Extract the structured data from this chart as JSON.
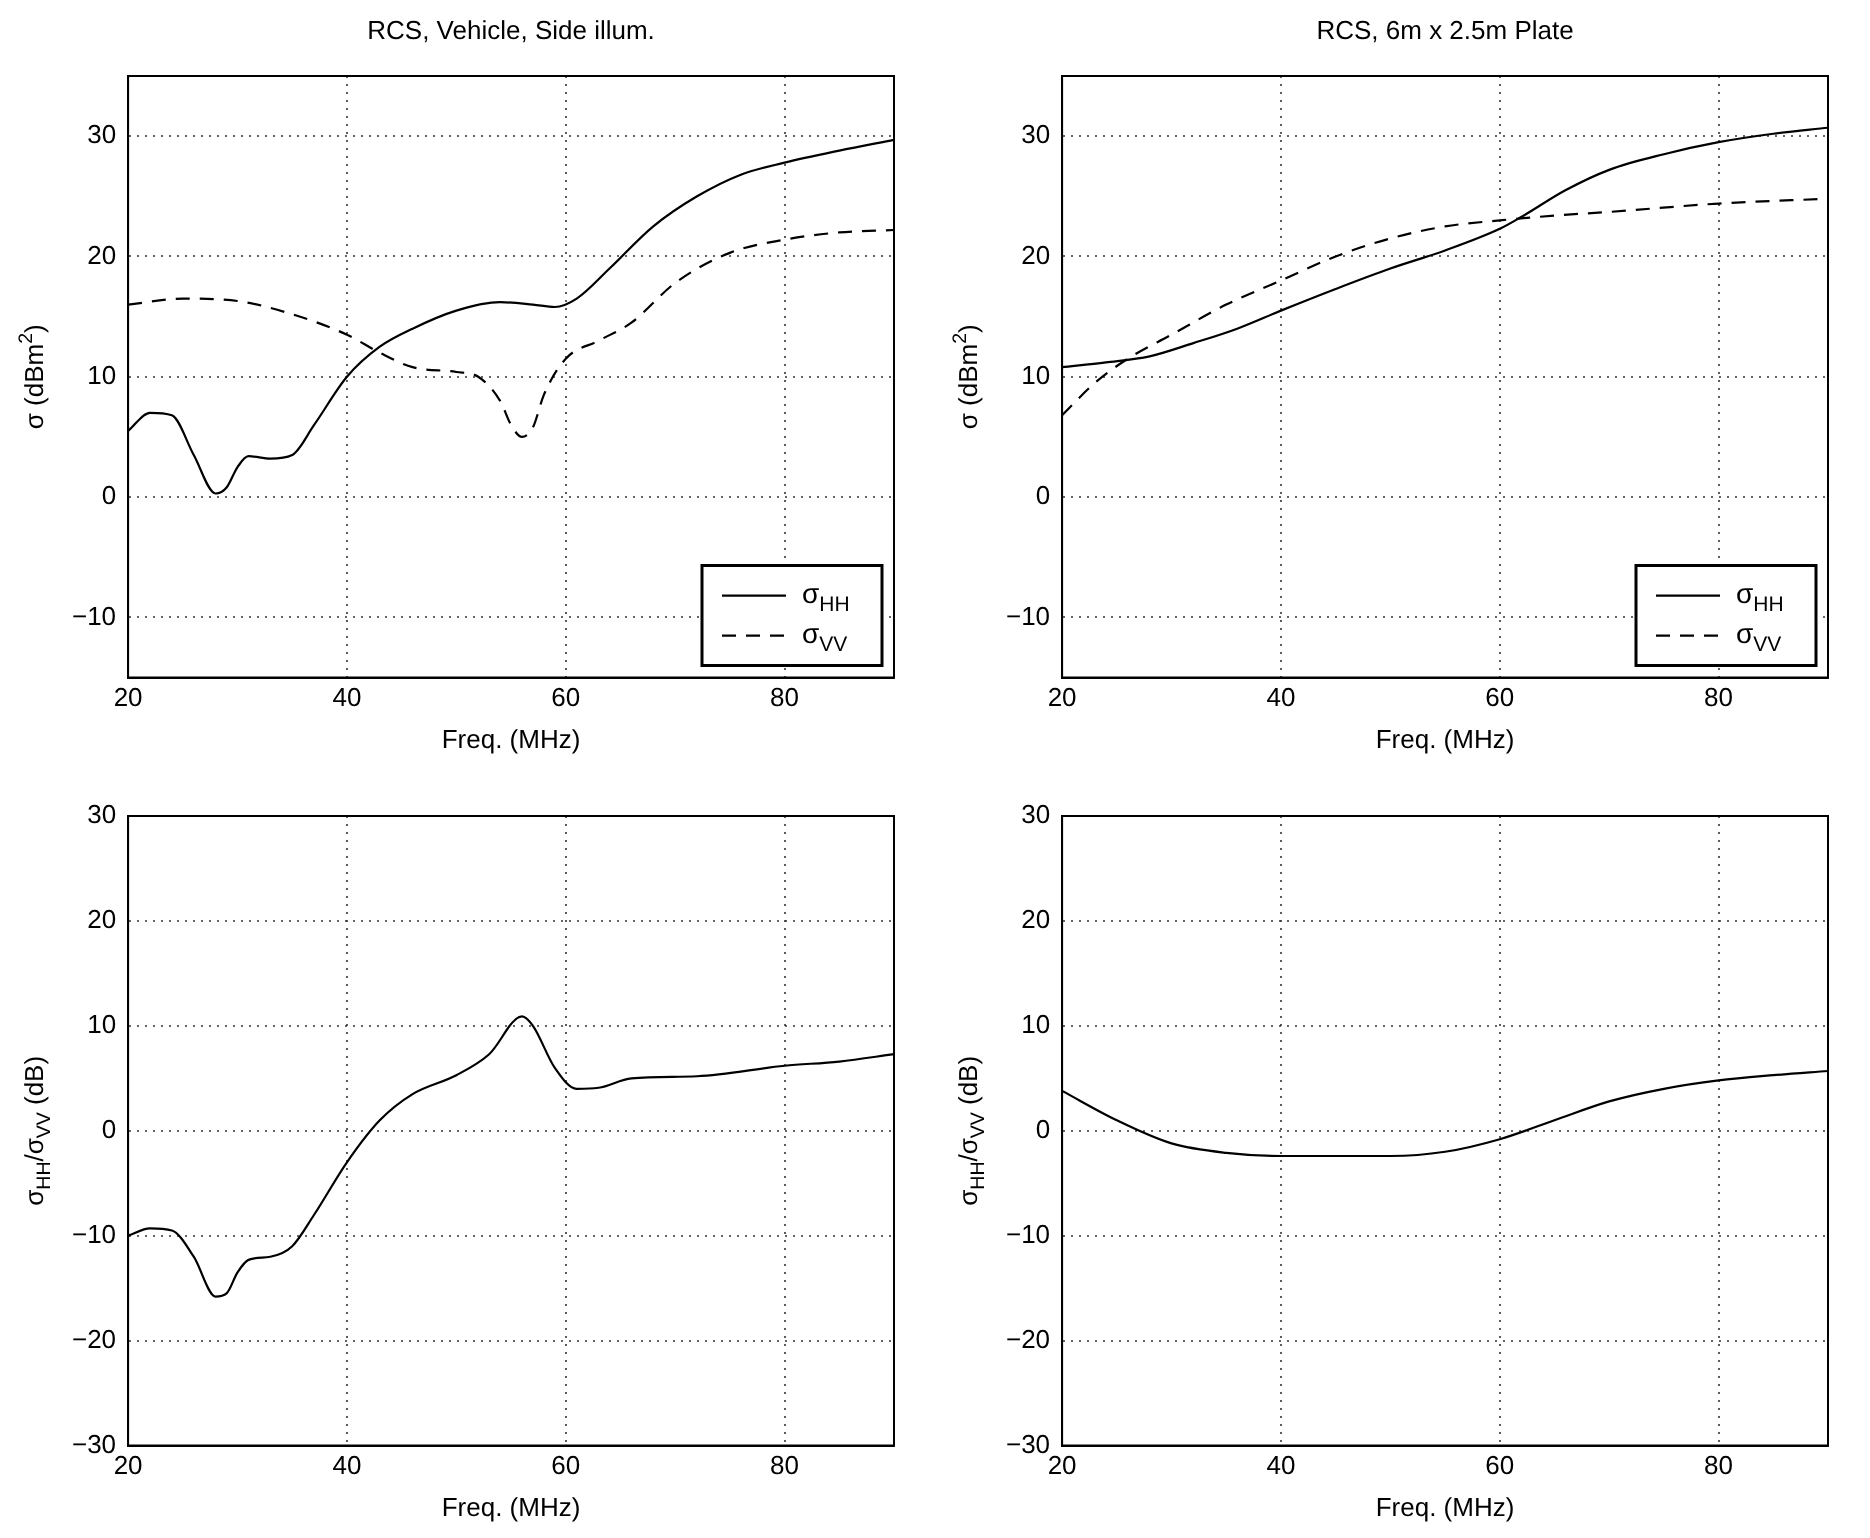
{
  "chart_data": [
    {
      "type": "line",
      "title": "RCS, Vehicle, Side illum.",
      "xlabel": "Freq. (MHz)",
      "ylabel": "σ (dBm$^{2}$)",
      "xlim": [
        20,
        90
      ],
      "xticks": [
        20,
        40,
        60,
        80
      ],
      "ylim": [
        -15,
        35
      ],
      "yticks": [
        {
          "value": -10,
          "label": "−10"
        },
        0,
        10,
        20,
        30
      ],
      "grid": true,
      "legend": "bottom right",
      "series": [
        {
          "name": "σ$_{HH}$",
          "color": "#000000",
          "line_style": "solid",
          "x": [
            20,
            22,
            24,
            26,
            28,
            29,
            30,
            31,
            33,
            35,
            37,
            40,
            43,
            46,
            50,
            54,
            57,
            59,
            61,
            64,
            68,
            72,
            76,
            80,
            85,
            90
          ],
          "values": [
            5.5,
            7,
            6.8,
            3.5,
            0.3,
            0.8,
            2.5,
            3.4,
            3.2,
            3.5,
            6,
            10,
            12.5,
            14,
            15.5,
            16.2,
            16,
            15.8,
            16.5,
            19,
            22.5,
            25,
            26.8,
            27.8,
            28.8,
            29.7
          ]
        },
        {
          "name": "σ$_{VV}$",
          "color": "#000000",
          "line_style": "dashed",
          "x": [
            20,
            25,
            30,
            35,
            40,
            43,
            46,
            50,
            52,
            54,
            55,
            56,
            57,
            58,
            60,
            63,
            66,
            70,
            75,
            80,
            85,
            90
          ],
          "values": [
            16,
            16.5,
            16.3,
            15.2,
            13.5,
            12,
            10.8,
            10.4,
            10,
            8,
            6,
            5,
            5.8,
            8.5,
            11.5,
            13,
            14.5,
            17.8,
            20.3,
            21.4,
            22,
            22.2
          ]
        }
      ]
    },
    {
      "type": "line",
      "title": "RCS, 6m x 2.5m Plate",
      "xlabel": "Freq. (MHz)",
      "ylabel": "σ (dBm$^{2}$)",
      "xlim": [
        20,
        90
      ],
      "xticks": [
        20,
        40,
        60,
        80
      ],
      "ylim": [
        -15,
        35
      ],
      "yticks": [
        {
          "value": -10,
          "label": "−10"
        },
        0,
        10,
        20,
        30
      ],
      "grid": true,
      "legend": "bottom right",
      "series": [
        {
          "name": "σ$_{HH}$",
          "color": "#000000",
          "line_style": "solid",
          "x": [
            20,
            24,
            28,
            32,
            36,
            40,
            45,
            50,
            55,
            60,
            62,
            66,
            70,
            75,
            80,
            85,
            90
          ],
          "values": [
            10.8,
            11.2,
            11.7,
            12.8,
            14,
            15.5,
            17.3,
            19,
            20.5,
            22.3,
            23.3,
            25.5,
            27.2,
            28.5,
            29.5,
            30.2,
            30.7
          ]
        },
        {
          "name": "σ$_{VV}$",
          "color": "#000000",
          "line_style": "dashed",
          "x": [
            20,
            23,
            26,
            30,
            35,
            40,
            45,
            50,
            55,
            60,
            65,
            70,
            80,
            90
          ],
          "values": [
            6.8,
            9.5,
            11.5,
            13.5,
            16,
            18,
            20,
            21.5,
            22.5,
            23,
            23.4,
            23.7,
            24.4,
            24.8
          ]
        }
      ]
    },
    {
      "type": "line",
      "xlabel": "Freq. (MHz)",
      "ylabel": "σ$_{HH}$/σ$_{VV}$ (dB)",
      "xlim": [
        20,
        90
      ],
      "xticks": [
        20,
        40,
        60,
        80
      ],
      "ylim": [
        -30,
        30
      ],
      "yticks": [
        {
          "value": -30,
          "label": "−30"
        },
        {
          "value": -20,
          "label": "−20"
        },
        {
          "value": -10,
          "label": "−10"
        },
        0,
        10,
        20,
        30
      ],
      "grid": true,
      "series": [
        {
          "color": "#000000",
          "line_style": "solid",
          "x": [
            20,
            22,
            24,
            26,
            28,
            29,
            30,
            31,
            33,
            35,
            37,
            40,
            43,
            46,
            50,
            53,
            56,
            57,
            59,
            61,
            63,
            66,
            72,
            80,
            85,
            90
          ],
          "values": [
            -10,
            -9.3,
            -9.5,
            -12,
            -15.8,
            -15.5,
            -13.5,
            -12.3,
            -12,
            -11,
            -8,
            -3,
            1,
            3.5,
            5.3,
            7.3,
            10.9,
            10,
            6,
            4,
            4.1,
            5,
            5.2,
            6.2,
            6.6,
            7.3
          ]
        }
      ]
    },
    {
      "type": "line",
      "xlabel": "Freq. (MHz)",
      "ylabel": "σ$_{HH}$/σ$_{VV}$ (dB)",
      "xlim": [
        20,
        90
      ],
      "xticks": [
        20,
        40,
        60,
        80
      ],
      "ylim": [
        -30,
        30
      ],
      "yticks": [
        {
          "value": -30,
          "label": "−30"
        },
        {
          "value": -20,
          "label": "−20"
        },
        {
          "value": -10,
          "label": "−10"
        },
        0,
        10,
        20,
        30
      ],
      "grid": true,
      "series": [
        {
          "color": "#000000",
          "line_style": "solid",
          "x": [
            20,
            25,
            30,
            35,
            40,
            45,
            50,
            55,
            60,
            65,
            70,
            75,
            80,
            85,
            90
          ],
          "values": [
            3.8,
            1,
            -1.2,
            -2.1,
            -2.4,
            -2.4,
            -2.4,
            -2,
            -0.8,
            1,
            2.8,
            4,
            4.8,
            5.3,
            5.7
          ]
        }
      ]
    }
  ]
}
